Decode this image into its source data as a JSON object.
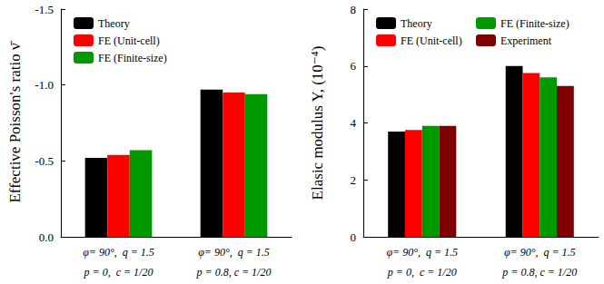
{
  "chart_data": [
    {
      "type": "bar",
      "y_label": "Effective Poisson's ratio ν̄",
      "categories": [
        "φ= 90°,  q = 1.5\np = 0,  c = 1/20",
        "φ= 90°,  q = 1.5\np = 0.8, c = 1/20"
      ],
      "series": [
        {
          "name": "Theory",
          "color": "#000000",
          "values": [
            -0.52,
            -0.97
          ]
        },
        {
          "name": "FE (Unit-cell)",
          "color": "#ff0000",
          "values": [
            -0.54,
            -0.95
          ]
        },
        {
          "name": "FE (Finite-size)",
          "color": "#009900",
          "values": [
            -0.57,
            -0.94
          ]
        }
      ],
      "ylim": [
        0,
        -1.5
      ],
      "yticks": [
        {
          "value": 0,
          "label": "0.0"
        },
        -0.5,
        {
          "value": -1,
          "label": "-1.0"
        },
        -1.5
      ],
      "grid": false,
      "legend": "upper left"
    },
    {
      "type": "bar",
      "y_label": "Elasic modulus Y, (10⁻⁴)",
      "categories": [
        "φ= 90°,  q = 1.5\np = 0,  c = 1/20",
        "φ= 90°,  q = 1.5\np = 0.8, c = 1/20"
      ],
      "series": [
        {
          "name": "Theory",
          "color": "#000000",
          "values": [
            3.7,
            6.0
          ]
        },
        {
          "name": "FE (Unit-cell)",
          "color": "#ff0000",
          "values": [
            3.75,
            5.75
          ]
        },
        {
          "name": "FE (Finite-size)",
          "color": "#009900",
          "values": [
            3.9,
            5.6
          ]
        },
        {
          "name": "Experiment",
          "color": "#7f0000",
          "values": [
            3.9,
            5.3
          ]
        }
      ],
      "ylim": [
        0,
        8
      ],
      "yticks": [
        0,
        2,
        4,
        6,
        8
      ],
      "grid": false,
      "legend": "upper left"
    }
  ]
}
